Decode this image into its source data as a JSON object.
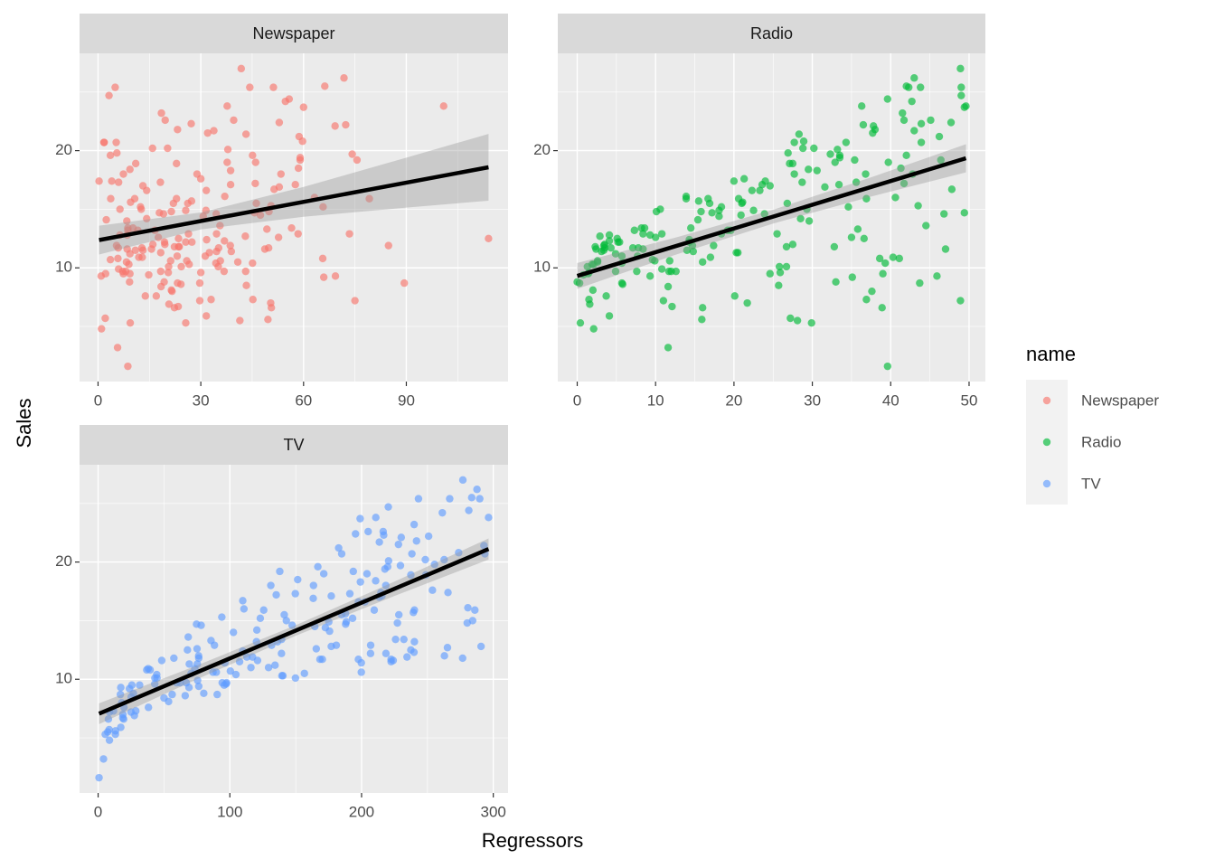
{
  "x_label": "Regressors",
  "y_label": "Sales",
  "legend_title": "name",
  "chart_data": [
    {
      "type": "scatter",
      "title": "Newspaper",
      "color": "#F8766D",
      "xlim": [
        -5.4,
        119.7
      ],
      "ylim": [
        0.3,
        28.3
      ],
      "xticks": [
        0,
        30,
        60,
        90
      ],
      "yticks": [
        10,
        20
      ],
      "xminor": [
        15,
        45,
        75,
        105
      ],
      "yminor": [
        5,
        15,
        25
      ],
      "x": [
        69.2,
        45.1,
        69.3,
        58.5,
        58.4,
        75,
        23.5,
        11.6,
        1,
        21.2,
        24.2,
        4,
        65.9,
        7.2,
        46,
        52.9,
        114,
        55.8,
        18.3,
        19.1,
        53.4,
        23.5,
        49.6,
        26.2,
        18.3,
        19.5,
        12.6,
        22.9,
        22.9,
        40.8,
        43.2,
        38.6,
        30,
        0.3,
        7.4,
        8.5,
        5,
        45.7,
        35.1,
        32,
        31.6,
        38.7,
        1.8,
        26.4,
        43.3,
        31.5,
        35.7,
        18.5,
        49.9,
        36.8,
        34.6,
        3.6,
        39.6,
        58.7,
        15.9,
        60,
        41.4,
        16.6,
        37.7,
        9.3,
        21.4,
        54.7,
        27.3,
        8.4,
        28.9,
        0.9,
        2.2,
        10.2,
        11,
        27.2,
        38.7,
        31.7,
        19.3,
        31.3,
        13.1,
        89.4,
        20.7,
        14.2,
        9.4,
        23.1,
        22.3,
        36.9,
        32.5,
        35.6,
        33.8,
        65.7,
        16,
        63.2,
        73.4,
        51.4,
        9.3,
        33,
        59,
        72.3,
        10.9,
        52.9,
        5.9,
        22,
        51.2,
        45.9,
        49.8,
        100.9,
        21.4,
        17.9,
        5.3,
        59,
        29.7,
        23.2,
        25.6,
        5.5,
        56.5,
        23.2,
        2.4,
        10.7,
        34.5,
        52.7,
        25.6,
        14.8,
        79.2,
        22.3,
        46.2,
        50.4,
        15.6,
        12.4,
        74.2,
        25.9,
        50.6,
        9.2,
        3.2,
        43.1,
        8.7,
        43,
        2.1,
        45.1,
        65.6,
        8.5,
        9.3,
        59.7,
        20.5,
        1.7,
        12.9,
        75.6,
        37.9,
        34.4,
        38.9,
        9,
        8.7,
        44.3,
        11.9,
        20.6,
        37,
        48.7,
        14.2,
        37.7,
        9.5,
        5.7,
        50.5,
        24.3,
        45.2,
        34.6,
        30.7,
        49.3,
        25.6,
        7.4,
        5.4,
        84.8,
        21.6,
        19.4,
        57.6,
        6.4,
        18.4,
        47.4,
        17,
        12.8,
        13.1,
        41.8,
        20.3,
        35.2,
        23.7,
        17.6,
        8.3,
        27.4,
        29.7,
        71.8,
        30,
        19.6,
        26.6,
        18.2,
        3.7,
        23.4,
        5.8,
        6,
        31.6,
        3.6,
        6,
        13.8,
        8.1,
        6.4,
        66.2,
        8.7
      ],
      "y": [
        22.1,
        10.4,
        9.3,
        18.5,
        12.9,
        7.2,
        11.8,
        13.2,
        4.8,
        10.6,
        8.6,
        17.4,
        9.2,
        9.7,
        19,
        22.4,
        12.5,
        24.4,
        11.3,
        14.6,
        18,
        12.5,
        5.6,
        15.5,
        9.7,
        12,
        15,
        15.9,
        18.9,
        10.5,
        21.4,
        11.9,
        9.6,
        17.4,
        9.5,
        12.8,
        25.4,
        14.7,
        10.1,
        21.5,
        16.6,
        17.1,
        20.7,
        12.9,
        8.5,
        14.9,
        10.6,
        23.2,
        14.8,
        9.7,
        11.4,
        10.7,
        22.6,
        21.2,
        20.2,
        23.7,
        5.5,
        13.2,
        23.8,
        18.4,
        8.1,
        24.2,
        15.7,
        14,
        18,
        9.3,
        9.5,
        13.4,
        18.9,
        22.3,
        18.3,
        12.4,
        8.8,
        11,
        17,
        8.7,
        6.9,
        14.2,
        5.3,
        11,
        11.8,
        12.3,
        11.3,
        13.6,
        21.7,
        15.2,
        12,
        16,
        12.9,
        16.7,
        11.2,
        7.3,
        19.4,
        22.2,
        11.5,
        16.9,
        11.7,
        15.5,
        25.4,
        17.2,
        11.7,
        23.8,
        14.8,
        14.7,
        20.7,
        19.2,
        7.2,
        8.7,
        5.3,
        19.8,
        13.4,
        21.8,
        14.1,
        15.9,
        14.6,
        12.6,
        12.2,
        9.4,
        15.9,
        6.6,
        15.5,
        7,
        11.6,
        15.2,
        19.7,
        10.6,
        6.6,
        8.8,
        24.7,
        9.7,
        1.6,
        12.7,
        5.7,
        19.6,
        10.8,
        11.6,
        9.5,
        20.8,
        9.6,
        20.7,
        10.9,
        19.2,
        20.1,
        10.4,
        11.4,
        10.3,
        13.2,
        25.4,
        10.9,
        10.1,
        16.1,
        11.6,
        16.6,
        19,
        15.6,
        3.2,
        15.3,
        10.1,
        7.3,
        12.9,
        14.4,
        13.3,
        14.9,
        18,
        11.9,
        11.9,
        8,
        12.2,
        17.1,
        15,
        8.4,
        14.5,
        7.6,
        11.7,
        11.5,
        27,
        20.2,
        11.7,
        11.8,
        12.6,
        10.5,
        12.2,
        8.7,
        26.2,
        17.6,
        22.6,
        10.3,
        17.3,
        15.9,
        6.7,
        10.8,
        9.9,
        5.9,
        19.6,
        17.3,
        7.6,
        9.7,
        12.8,
        25.5,
        13.4
      ],
      "fit": {
        "x": [
          0.3,
          114
        ],
        "y": [
          12.37,
          18.58
        ]
      },
      "band": {
        "x": [
          0.3,
          30,
          60,
          90,
          114
        ],
        "lower": [
          11.14,
          13.28,
          14.36,
          15.14,
          15.73
        ],
        "upper": [
          13.6,
          14.72,
          16.9,
          19.4,
          21.43
        ]
      }
    },
    {
      "type": "scatter",
      "title": "Radio",
      "color": "#00BA38",
      "xlim": [
        -2.48,
        52.08
      ],
      "ylim": [
        0.3,
        28.3
      ],
      "xticks": [
        0,
        10,
        20,
        30,
        40,
        50
      ],
      "yticks": [
        10,
        20
      ],
      "xminor": [
        5,
        15,
        25,
        35,
        45
      ],
      "yminor": [
        5,
        15,
        25
      ],
      "x": [
        37.8,
        39.3,
        45.9,
        41.3,
        10.8,
        48.9,
        32.8,
        19.6,
        2.1,
        2.6,
        5.8,
        24,
        35.1,
        7.6,
        32.9,
        47.7,
        36.6,
        39.6,
        20.5,
        23.9,
        27.7,
        5.1,
        15.9,
        16.9,
        12.6,
        3.5,
        29.3,
        16.7,
        27.1,
        16,
        28.3,
        17.4,
        1.5,
        20,
        1.4,
        4.1,
        43.8,
        49.4,
        26.7,
        37.7,
        22.3,
        33.4,
        27.7,
        8.4,
        25.7,
        22.5,
        9.9,
        41.5,
        15.8,
        11.7,
        3.1,
        9.6,
        41.7,
        46.2,
        28.8,
        49.4,
        28.1,
        19.2,
        49.6,
        29.5,
        2,
        42.7,
        15.5,
        29.6,
        42.8,
        9.3,
        24.6,
        14.5,
        27.5,
        43.9,
        30.6,
        14.3,
        33,
        5.7,
        24.6,
        43.7,
        1.6,
        28.5,
        29.9,
        7.7,
        26.7,
        4.1,
        20.3,
        44.5,
        43,
        18.4,
        27.5,
        40.6,
        25.5,
        47.8,
        4.9,
        1.5,
        33.5,
        36.5,
        14,
        31.6,
        3.5,
        21,
        42.3,
        41.7,
        4.3,
        36.3,
        10.1,
        17.2,
        34.3,
        46.4,
        11,
        0.3,
        0.4,
        26.9,
        8.2,
        38,
        15.4,
        20.6,
        46.8,
        35,
        14.3,
        0.8,
        36.9,
        16,
        26.8,
        21.7,
        2.4,
        34.6,
        32.3,
        11.8,
        38.9,
        0,
        49,
        12,
        39.6,
        2.9,
        27.2,
        33.5,
        38.6,
        47,
        39,
        28.9,
        25.9,
        43.9,
        17,
        35.4,
        33.2,
        5.7,
        14.8,
        1.9,
        7.3,
        49,
        40.3,
        25.8,
        13.9,
        8.4,
        23.3,
        39.7,
        21.1,
        11.6,
        43.5,
        1.3,
        36.9,
        18.4,
        18.1,
        35.8,
        18.1,
        36.8,
        14.7,
        3.4,
        37.6,
        5.2,
        23.6,
        10.6,
        11.6,
        20.9,
        20.1,
        7.1,
        3.4,
        48.9,
        30.2,
        7.8,
        2.3,
        10,
        2.6,
        5.4,
        5.7,
        43,
        21.3,
        45.1,
        2.1,
        28.7,
        13.9,
        12.1,
        41.1,
        10.8,
        4.1,
        42,
        35.6,
        3.7,
        4.9,
        9.3,
        42,
        8.6
      ],
      "y": [
        22.1,
        10.4,
        9.3,
        18.5,
        12.9,
        7.2,
        11.8,
        13.2,
        4.8,
        10.6,
        8.6,
        17.4,
        9.2,
        9.7,
        19,
        22.4,
        12.5,
        24.4,
        11.3,
        14.6,
        18,
        12.5,
        5.6,
        15.5,
        9.7,
        12,
        15,
        15.9,
        18.9,
        10.5,
        21.4,
        11.9,
        9.6,
        17.4,
        9.5,
        12.8,
        25.4,
        14.7,
        10.1,
        21.5,
        16.6,
        17.1,
        20.7,
        12.9,
        8.5,
        14.9,
        10.6,
        23.2,
        14.8,
        9.7,
        11.4,
        10.7,
        22.6,
        21.2,
        20.2,
        23.7,
        5.5,
        13.2,
        23.8,
        18.4,
        8.1,
        24.2,
        15.7,
        14,
        18,
        9.3,
        9.5,
        13.4,
        18.9,
        22.3,
        18.3,
        12.4,
        8.8,
        11,
        17,
        8.7,
        6.9,
        14.2,
        5.3,
        11,
        11.8,
        12.3,
        11.3,
        13.6,
        21.7,
        15.2,
        12,
        16,
        12.9,
        16.7,
        11.2,
        7.3,
        19.4,
        22.2,
        11.5,
        16.9,
        11.7,
        15.5,
        25.4,
        17.2,
        11.7,
        23.8,
        14.8,
        14.7,
        20.7,
        19.2,
        7.2,
        8.7,
        5.3,
        19.8,
        13.4,
        21.8,
        14.1,
        15.9,
        14.6,
        12.6,
        12.2,
        9.4,
        15.9,
        6.6,
        15.5,
        7,
        11.6,
        15.2,
        19.7,
        10.6,
        6.6,
        8.8,
        24.7,
        9.7,
        1.6,
        12.7,
        5.7,
        19.6,
        10.8,
        11.6,
        9.5,
        20.8,
        9.6,
        20.7,
        10.9,
        19.2,
        20.1,
        10.4,
        11.4,
        10.3,
        13.2,
        25.4,
        10.9,
        10.1,
        16.1,
        11.6,
        16.6,
        19,
        15.6,
        3.2,
        15.3,
        10.1,
        7.3,
        12.9,
        14.4,
        13.3,
        14.9,
        18,
        11.9,
        11.9,
        8,
        12.2,
        17.1,
        15,
        8.4,
        14.5,
        7.6,
        11.7,
        11.5,
        27,
        20.2,
        11.7,
        11.8,
        12.6,
        10.5,
        12.2,
        8.7,
        26.2,
        17.6,
        22.6,
        10.3,
        17.3,
        15.9,
        6.7,
        10.8,
        9.9,
        5.9,
        19.6,
        17.3,
        7.6,
        9.7,
        12.8,
        25.5,
        13.4
      ],
      "fit": {
        "x": [
          0,
          49.6
        ],
        "y": [
          9.31,
          19.35
        ]
      },
      "band": {
        "x": [
          0,
          12.5,
          25,
          37.5,
          49.6
        ],
        "lower": [
          8.21,
          11.11,
          13.78,
          16.08,
          18.15
        ],
        "upper": [
          10.41,
          12.57,
          14.96,
          17.72,
          20.55
        ]
      }
    },
    {
      "type": "scatter",
      "title": "TV",
      "color": "#619CFF",
      "xlim": [
        -14.1,
        311.2
      ],
      "ylim": [
        0.3,
        28.3
      ],
      "xticks": [
        0,
        100,
        200,
        300
      ],
      "yticks": [
        10,
        20
      ],
      "xminor": [
        50,
        150,
        250
      ],
      "yminor": [
        5,
        15,
        25
      ],
      "x": [
        230.1,
        44.5,
        17.2,
        151.5,
        180.8,
        8.7,
        57.5,
        120.2,
        8.6,
        199.8,
        66.1,
        214.7,
        23.8,
        97.5,
        204.1,
        195.4,
        67.8,
        281.4,
        69.2,
        147.3,
        218.4,
        237.4,
        13.2,
        228.3,
        62.3,
        262.9,
        142.9,
        240.1,
        248.8,
        70.6,
        292.9,
        112.9,
        97.2,
        265.6,
        95.7,
        290.7,
        266.9,
        74.7,
        43.1,
        228,
        202.5,
        177,
        293.6,
        206.9,
        25.1,
        175.1,
        89.7,
        239.9,
        227.2,
        66.9,
        199.8,
        100.4,
        216.4,
        182.6,
        262.7,
        198.9,
        7.3,
        136.2,
        210.8,
        210.7,
        53.5,
        261.3,
        239.3,
        102.7,
        131.1,
        69,
        31.5,
        139.3,
        237.4,
        216.8,
        199.1,
        109.8,
        26.8,
        129.4,
        213.4,
        16.9,
        27.5,
        120.5,
        5.4,
        116,
        76.4,
        239.8,
        75.3,
        68.4,
        213.5,
        193.2,
        76.3,
        110.7,
        88.3,
        109.8,
        134.3,
        28.6,
        217.7,
        250.9,
        107.4,
        163.3,
        197.6,
        184.9,
        289.7,
        135.2,
        222.4,
        296.4,
        280.2,
        187.9,
        238.2,
        137.9,
        25,
        90.4,
        13.1,
        255.4,
        225.8,
        241.7,
        175.7,
        209.6,
        78.2,
        75.1,
        139.2,
        76.4,
        125.7,
        19.4,
        141.3,
        18.8,
        224,
        123.1,
        229.5,
        87.2,
        7.8,
        80.2,
        220.3,
        59.6,
        0.7,
        265.2,
        8.4,
        219.8,
        36.9,
        48.3,
        25.6,
        273.7,
        43,
        184.9,
        73.4,
        193.7,
        220.5,
        104.6,
        96.2,
        140.3,
        240.1,
        243.2,
        38,
        44.7,
        280.7,
        121,
        197.6,
        171.3,
        187.8,
        4.1,
        93.9,
        149.8,
        11.7,
        131.7,
        172.5,
        85.7,
        188.4,
        163.5,
        117.2,
        234.5,
        17.9,
        206.8,
        215.4,
        284.3,
        50,
        164.5,
        19.6,
        168.4,
        222.4,
        276.9,
        248.4,
        170.2,
        276.7,
        165.6,
        156.6,
        218.5,
        56.2,
        287.6,
        253.8,
        205,
        139.5,
        191.1,
        286,
        18.7,
        39.5,
        75.5,
        17.2,
        166.8,
        149.7,
        38.2,
        94.2,
        177,
        283.6,
        232.1
      ],
      "y": [
        22.1,
        10.4,
        9.3,
        18.5,
        12.9,
        7.2,
        11.8,
        13.2,
        4.8,
        10.6,
        8.6,
        17.4,
        9.2,
        9.7,
        19,
        22.4,
        12.5,
        24.4,
        11.3,
        14.6,
        18,
        12.5,
        5.6,
        15.5,
        9.7,
        12,
        15,
        15.9,
        18.9,
        10.5,
        21.4,
        11.9,
        9.6,
        17.4,
        9.5,
        12.8,
        25.4,
        14.7,
        10.1,
        21.5,
        16.6,
        17.1,
        20.7,
        12.9,
        8.5,
        14.9,
        10.6,
        23.2,
        14.8,
        9.7,
        11.4,
        10.7,
        22.6,
        21.2,
        20.2,
        23.7,
        5.5,
        13.2,
        23.8,
        18.4,
        8.1,
        24.2,
        15.7,
        14,
        18,
        9.3,
        9.5,
        13.4,
        18.9,
        22.3,
        18.3,
        12.4,
        8.8,
        11,
        17,
        8.7,
        6.9,
        14.2,
        5.3,
        11,
        11.8,
        12.3,
        11.3,
        13.6,
        21.7,
        15.2,
        12,
        16,
        12.9,
        16.7,
        11.2,
        7.3,
        19.4,
        22.2,
        11.5,
        16.9,
        11.7,
        15.5,
        25.4,
        17.2,
        11.7,
        23.8,
        14.8,
        14.7,
        20.7,
        19.2,
        7.2,
        8.7,
        5.3,
        19.8,
        13.4,
        21.8,
        14.1,
        15.9,
        14.6,
        12.6,
        12.2,
        9.4,
        15.9,
        6.6,
        15.5,
        7,
        11.6,
        15.2,
        19.7,
        10.6,
        6.6,
        8.8,
        24.7,
        9.7,
        1.6,
        12.7,
        5.7,
        19.6,
        10.8,
        11.6,
        9.5,
        20.8,
        9.6,
        20.7,
        10.9,
        19.2,
        20.1,
        10.4,
        11.4,
        10.3,
        13.2,
        25.4,
        10.9,
        10.1,
        16.1,
        11.6,
        16.6,
        19,
        15.6,
        3.2,
        15.3,
        10.1,
        7.3,
        12.9,
        14.4,
        13.3,
        14.9,
        18,
        11.9,
        11.9,
        8,
        12.2,
        17.1,
        15,
        8.4,
        14.5,
        7.6,
        11.7,
        11.5,
        27,
        20.2,
        11.7,
        11.8,
        12.6,
        10.5,
        12.2,
        8.7,
        26.2,
        17.6,
        22.6,
        10.3,
        17.3,
        15.9,
        6.7,
        10.8,
        9.9,
        5.9,
        19.6,
        17.3,
        7.6,
        9.7,
        12.8,
        25.5,
        13.4
      ],
      "fit": {
        "x": [
          0.7,
          296.4
        ],
        "y": [
          7.06,
          21.11
        ]
      },
      "band": {
        "x": [
          0.7,
          75,
          150,
          225,
          296.4
        ],
        "lower": [
          6.17,
          10,
          13.71,
          17.11,
          20.21
        ],
        "upper": [
          7.95,
          11.18,
          14.61,
          18.33,
          22.01
        ]
      }
    }
  ]
}
